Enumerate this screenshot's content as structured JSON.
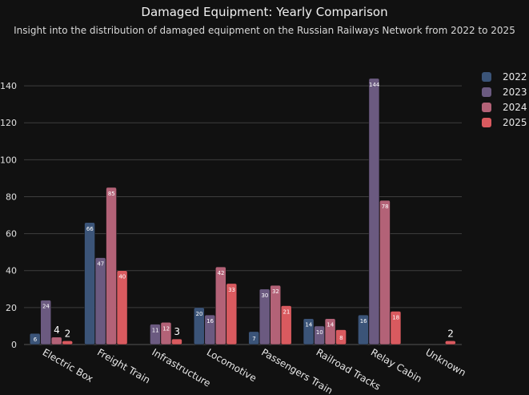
{
  "chart_data": {
    "type": "bar",
    "title": "Damaged Equipment: Yearly Comparison",
    "subtitle": "Insight into the distribution of damaged equipment on the Russian Railways Network from 2022 to 2025",
    "xlabel": "",
    "ylabel": "",
    "ylim": [
      0,
      150
    ],
    "yticks": [
      0,
      20,
      40,
      60,
      80,
      100,
      120,
      140
    ],
    "categories": [
      "Electric Box",
      "Freight Train",
      "Infrastructure",
      "Locomotive",
      "Passengers Train",
      "Railroad Tracks",
      "Relay Cabin",
      "Unknown"
    ],
    "series": [
      {
        "name": "2022",
        "color": "#3b5478",
        "values": [
          6,
          66,
          0,
          20,
          7,
          14,
          16,
          0
        ]
      },
      {
        "name": "2023",
        "color": "#6b5a80",
        "values": [
          24,
          47,
          11,
          16,
          30,
          10,
          144,
          0
        ]
      },
      {
        "name": "2024",
        "color": "#b36277",
        "values": [
          4,
          85,
          12,
          42,
          32,
          14,
          78,
          0
        ]
      },
      {
        "name": "2025",
        "color": "#d95a5f",
        "values": [
          2,
          40,
          3,
          33,
          21,
          8,
          18,
          2
        ]
      }
    ],
    "grid": true,
    "legend": "right"
  }
}
